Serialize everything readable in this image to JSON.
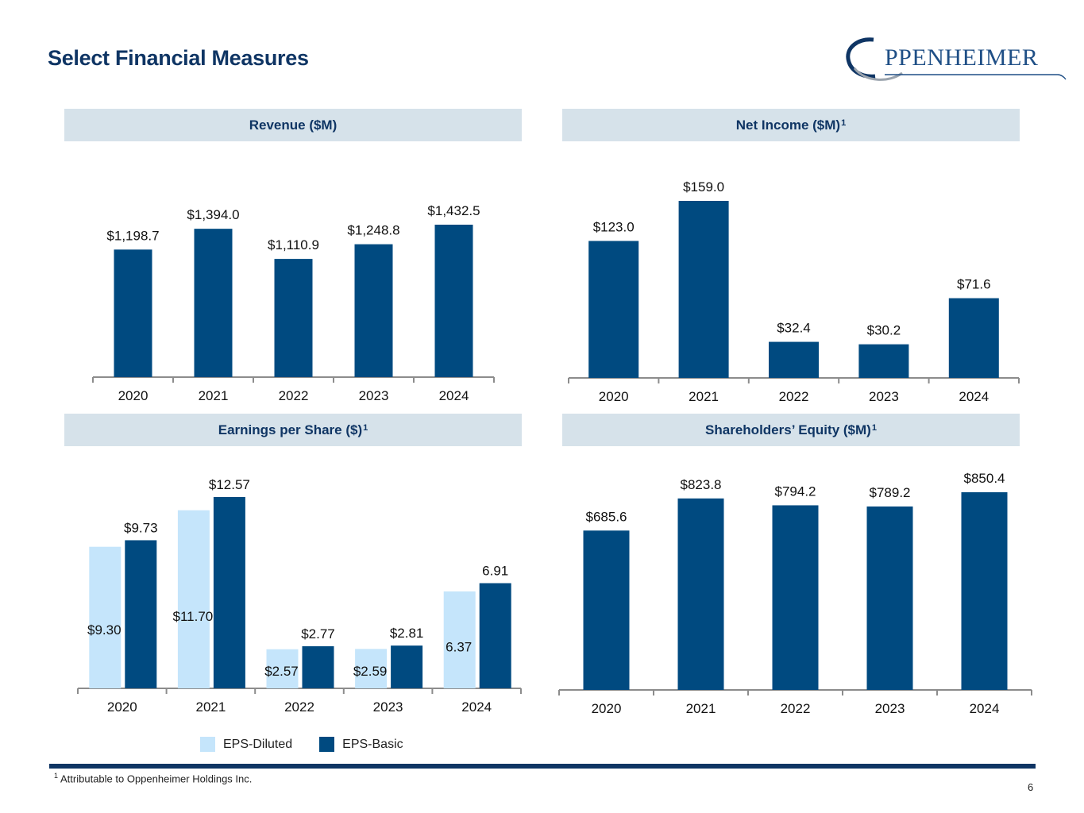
{
  "page": {
    "title": "Select Financial Measures",
    "logo_text": "PPENHEIMER",
    "page_number": "6"
  },
  "colors": {
    "navy": "#0f3564",
    "bar_dark": "#004a80",
    "bar_light": "#c5e5fb",
    "header_bg": "#d6e2ea",
    "axis": "#8c8c8c"
  },
  "footnote": {
    "marker": "1",
    "text": "Attributable to Oppenheimer Holdings Inc."
  },
  "legend": {
    "diluted_label": "EPS-Diluted",
    "basic_label": "EPS-Basic"
  },
  "chart_data": [
    {
      "id": "revenue",
      "type": "bar",
      "title": "Revenue ($M)",
      "title_sup": "",
      "categories": [
        "2020",
        "2021",
        "2022",
        "2023",
        "2024"
      ],
      "values": [
        1198.7,
        1394.0,
        1110.9,
        1248.8,
        1432.5
      ],
      "labels": [
        "$1,198.7",
        "$1,394.0",
        "$1,110.9",
        "$1,248.8",
        "$1,432.5"
      ],
      "ylim": [
        0,
        1432.5
      ],
      "grid": false
    },
    {
      "id": "net-income",
      "type": "bar",
      "title": "Net Income ($M)",
      "title_sup": "1",
      "categories": [
        "2020",
        "2021",
        "2022",
        "2023",
        "2024"
      ],
      "values": [
        123.0,
        159.0,
        32.4,
        30.2,
        71.6
      ],
      "labels": [
        "$123.0",
        "$159.0",
        "$32.4",
        "$30.2",
        "$71.6"
      ],
      "ylim": [
        0,
        159.0
      ],
      "grid": false
    },
    {
      "id": "eps",
      "type": "bar",
      "title": "Earnings per Share ($)",
      "title_sup": "1",
      "categories": [
        "2020",
        "2021",
        "2022",
        "2023",
        "2024"
      ],
      "series": [
        {
          "name": "EPS-Diluted",
          "values": [
            9.3,
            11.7,
            2.57,
            2.59,
            6.37
          ],
          "labels": [
            "$9.30",
            "$11.70",
            "$2.57",
            "$2.59",
            "6.37"
          ]
        },
        {
          "name": "EPS-Basic",
          "values": [
            9.73,
            12.57,
            2.77,
            2.81,
            6.91
          ],
          "labels": [
            "$9.73",
            "$12.57",
            "$2.77",
            "$2.81",
            "6.91"
          ]
        }
      ],
      "ylim": [
        0,
        12.57
      ],
      "legend": "bottom",
      "grid": false
    },
    {
      "id": "equity",
      "type": "bar",
      "title": "Shareholders’ Equity ($M)",
      "title_sup": "1",
      "categories": [
        "2020",
        "2021",
        "2022",
        "2023",
        "2024"
      ],
      "values": [
        685.6,
        823.8,
        794.2,
        789.2,
        850.4
      ],
      "labels": [
        "$685.6",
        "$823.8",
        "$794.2",
        "$789.2",
        "$850.4"
      ],
      "ylim": [
        0,
        850.4
      ],
      "grid": false
    }
  ]
}
